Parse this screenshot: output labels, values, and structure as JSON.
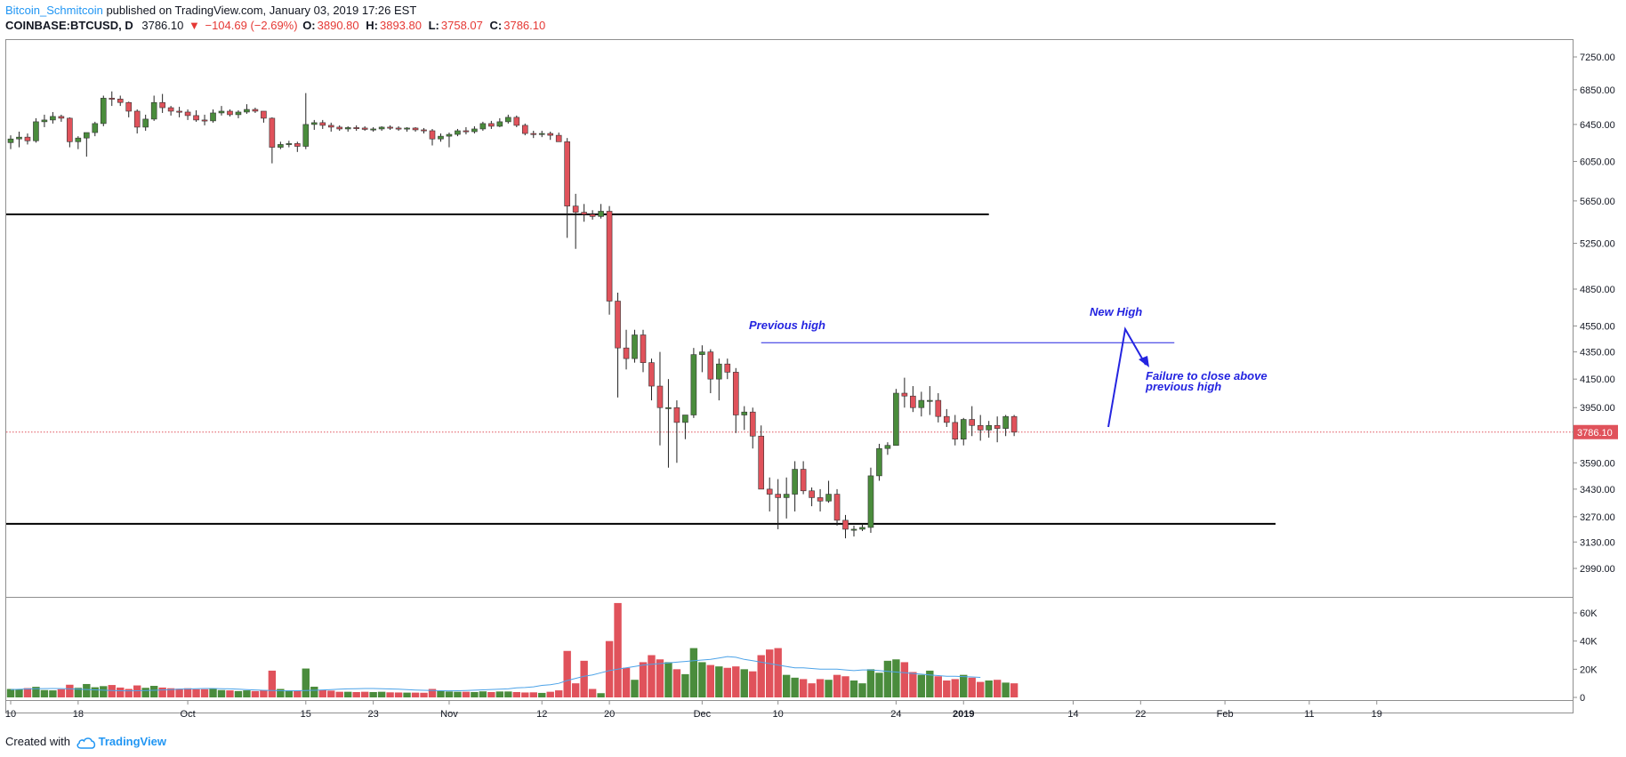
{
  "header": {
    "author": "Bitcoin_Schmitcoin",
    "published": "published on TradingView.com, January 03, 2019 17:26 EST"
  },
  "symbol": {
    "name": "COINBASE:BTCUSD, D",
    "last": "3786.10",
    "change": "−104.69 (−2.69%)",
    "o_label": "O:",
    "o": "3890.80",
    "h_label": "H:",
    "h": "3893.80",
    "l_label": "L:",
    "l": "3758.07",
    "c_label": "C:",
    "c": "3786.10"
  },
  "footer": {
    "created": "Created with",
    "brand": "TradingView"
  },
  "colors": {
    "up": "#4a8c3c",
    "down": "#e0525b",
    "annotation": "#2424e0",
    "ma": "#4da3e8",
    "level": "#000000"
  },
  "chart_data": {
    "type": "candlestick",
    "price_axis": {
      "ticks": [
        7250,
        6850,
        6450,
        6050,
        5650,
        5250,
        4850,
        4550,
        4350,
        4150,
        3950,
        3590,
        3430,
        3270,
        3130,
        2990
      ],
      "tick_labels": [
        "7250.00",
        "6850.00",
        "6450.00",
        "6050.00",
        "5650.00",
        "5250.00",
        "4850.00",
        "4550.00",
        "4350.00",
        "4150.00",
        "3950.00",
        "3590.00",
        "3430.00",
        "3270.00",
        "3130.00",
        "2990.00"
      ],
      "scale": "log",
      "last_price_label": "3786.10",
      "last_price": 3786.1
    },
    "volume_axis": {
      "ticks": [
        60000,
        40000,
        20000,
        0
      ],
      "tick_labels": [
        "60K",
        "40K",
        "20K",
        "0"
      ]
    },
    "time_axis": {
      "start_date": "2018-09-10",
      "ticks": [
        {
          "date": "2018-09-10",
          "label": "10",
          "bold": false
        },
        {
          "date": "2018-09-18",
          "label": "18",
          "bold": false
        },
        {
          "date": "2018-10-01",
          "label": "Oct",
          "bold": false
        },
        {
          "date": "2018-10-15",
          "label": "15",
          "bold": false
        },
        {
          "date": "2018-10-23",
          "label": "23",
          "bold": false
        },
        {
          "date": "2018-11-01",
          "label": "Nov",
          "bold": false
        },
        {
          "date": "2018-11-12",
          "label": "12",
          "bold": false
        },
        {
          "date": "2018-11-20",
          "label": "20",
          "bold": false
        },
        {
          "date": "2018-12-01",
          "label": "Dec",
          "bold": false
        },
        {
          "date": "2018-12-10",
          "label": "10",
          "bold": false
        },
        {
          "date": "2018-12-24",
          "label": "24",
          "bold": false
        },
        {
          "date": "2019-01-01",
          "label": "2019",
          "bold": true
        },
        {
          "date": "2019-01-14",
          "label": "14",
          "bold": false
        },
        {
          "date": "2019-01-22",
          "label": "22",
          "bold": false
        },
        {
          "date": "2019-02-01",
          "label": "Feb",
          "bold": false
        },
        {
          "date": "2019-02-11",
          "label": "11",
          "bold": false
        },
        {
          "date": "2019-02-19",
          "label": "19",
          "bold": false
        }
      ]
    },
    "candles": [
      [
        6250,
        6330,
        6180,
        6290,
        6000
      ],
      [
        6290,
        6370,
        6200,
        6310,
        5800
      ],
      [
        6310,
        6350,
        6230,
        6270,
        6600
      ],
      [
        6270,
        6520,
        6250,
        6480,
        7500
      ],
      [
        6480,
        6560,
        6420,
        6500,
        5200
      ],
      [
        6500,
        6590,
        6460,
        6540,
        5000
      ],
      [
        6540,
        6560,
        6480,
        6520,
        5800
      ],
      [
        6520,
        6530,
        6200,
        6260,
        9000
      ],
      [
        6260,
        6320,
        6180,
        6300,
        6800
      ],
      [
        6300,
        6340,
        6100,
        6360,
        9500
      ],
      [
        6360,
        6480,
        6320,
        6460,
        7200
      ],
      [
        6460,
        6780,
        6430,
        6750,
        8000
      ],
      [
        6750,
        6830,
        6660,
        6740,
        8800
      ],
      [
        6740,
        6780,
        6660,
        6700,
        7000
      ],
      [
        6700,
        6710,
        6530,
        6600,
        6000
      ],
      [
        6600,
        6620,
        6350,
        6420,
        8500
      ],
      [
        6420,
        6560,
        6380,
        6510,
        6800
      ],
      [
        6510,
        6780,
        6490,
        6700,
        8200
      ],
      [
        6700,
        6800,
        6580,
        6640,
        7000
      ],
      [
        6640,
        6660,
        6550,
        6600,
        6500
      ],
      [
        6600,
        6650,
        6530,
        6590,
        6200
      ],
      [
        6590,
        6620,
        6500,
        6550,
        6500
      ],
      [
        6550,
        6610,
        6480,
        6500,
        5800
      ],
      [
        6500,
        6560,
        6440,
        6490,
        5800
      ],
      [
        6490,
        6620,
        6470,
        6580,
        6000
      ],
      [
        6580,
        6660,
        6550,
        6600,
        5200
      ],
      [
        6600,
        6620,
        6540,
        6560,
        5000
      ],
      [
        6560,
        6610,
        6520,
        6590,
        4500
      ],
      [
        6590,
        6680,
        6570,
        6620,
        5000
      ],
      [
        6620,
        6640,
        6580,
        6600,
        4500
      ],
      [
        6600,
        6600,
        6470,
        6520,
        5200
      ],
      [
        6520,
        6530,
        6030,
        6200,
        19000
      ],
      [
        6200,
        6260,
        6180,
        6230,
        6000
      ],
      [
        6230,
        6270,
        6200,
        6240,
        5000
      ],
      [
        6240,
        6260,
        6150,
        6210,
        4800
      ],
      [
        6210,
        6810,
        6180,
        6450,
        20500
      ],
      [
        6450,
        6500,
        6390,
        6470,
        7600
      ],
      [
        6470,
        6500,
        6400,
        6440,
        5200
      ],
      [
        6440,
        6470,
        6370,
        6420,
        4800
      ],
      [
        6420,
        6440,
        6380,
        6400,
        4000
      ],
      [
        6400,
        6430,
        6370,
        6415,
        4000
      ],
      [
        6415,
        6440,
        6380,
        6410,
        3800
      ],
      [
        6410,
        6430,
        6380,
        6395,
        4000
      ],
      [
        6395,
        6420,
        6370,
        6400,
        3800
      ],
      [
        6400,
        6430,
        6380,
        6420,
        4000
      ],
      [
        6420,
        6440,
        6390,
        6410,
        3600
      ],
      [
        6410,
        6430,
        6380,
        6400,
        3500
      ],
      [
        6400,
        6420,
        6370,
        6410,
        3400
      ],
      [
        6410,
        6420,
        6370,
        6390,
        3400
      ],
      [
        6390,
        6410,
        6350,
        6380,
        3300
      ],
      [
        6380,
        6400,
        6220,
        6290,
        6000
      ],
      [
        6290,
        6350,
        6260,
        6320,
        4500
      ],
      [
        6320,
        6360,
        6200,
        6340,
        4200
      ],
      [
        6340,
        6400,
        6320,
        6380,
        4000
      ],
      [
        6380,
        6420,
        6340,
        6370,
        4000
      ],
      [
        6370,
        6430,
        6350,
        6400,
        3800
      ],
      [
        6400,
        6480,
        6380,
        6460,
        4300
      ],
      [
        6460,
        6490,
        6400,
        6430,
        3800
      ],
      [
        6430,
        6520,
        6420,
        6480,
        4200
      ],
      [
        6480,
        6560,
        6460,
        6530,
        4200
      ],
      [
        6530,
        6550,
        6420,
        6440,
        3800
      ],
      [
        6440,
        6460,
        6330,
        6350,
        3500
      ],
      [
        6350,
        6380,
        6300,
        6340,
        3600
      ],
      [
        6340,
        6380,
        6310,
        6350,
        3200
      ],
      [
        6350,
        6370,
        6280,
        6330,
        4000
      ],
      [
        6330,
        6360,
        6260,
        6260,
        5000
      ],
      [
        6260,
        6300,
        5300,
        5600,
        33000
      ],
      [
        5600,
        5720,
        5200,
        5540,
        10000
      ],
      [
        5540,
        5620,
        5450,
        5520,
        26000
      ],
      [
        5520,
        5560,
        5470,
        5500,
        6000
      ],
      [
        5500,
        5620,
        5480,
        5550,
        3000
      ],
      [
        5550,
        5600,
        4640,
        4750,
        40000
      ],
      [
        4750,
        4820,
        4020,
        4380,
        67000
      ],
      [
        4380,
        4520,
        4220,
        4300,
        21000
      ],
      [
        4300,
        4520,
        4270,
        4480,
        12500
      ],
      [
        4480,
        4520,
        4200,
        4270,
        25000
      ],
      [
        4270,
        4300,
        4000,
        4100,
        30000
      ],
      [
        4100,
        4350,
        3700,
        3950,
        27000
      ],
      [
        3950,
        4150,
        3560,
        3950,
        25000
      ],
      [
        3950,
        4000,
        3590,
        3850,
        20000
      ],
      [
        3850,
        3880,
        3740,
        3900,
        16500
      ],
      [
        3900,
        4380,
        3880,
        4330,
        35000
      ],
      [
        4330,
        4400,
        4200,
        4350,
        25000
      ],
      [
        4350,
        4370,
        4050,
        4150,
        23000
      ],
      [
        4150,
        4300,
        4000,
        4260,
        22000
      ],
      [
        4260,
        4300,
        4150,
        4200,
        21000
      ],
      [
        4200,
        4230,
        3780,
        3900,
        22000
      ],
      [
        3900,
        3960,
        3800,
        3920,
        20000
      ],
      [
        3920,
        3950,
        3680,
        3760,
        18500
      ],
      [
        3760,
        3830,
        3450,
        3430,
        30000
      ],
      [
        3430,
        3500,
        3300,
        3400,
        34000
      ],
      [
        3400,
        3490,
        3200,
        3380,
        35000
      ],
      [
        3380,
        3500,
        3260,
        3400,
        16000
      ],
      [
        3400,
        3600,
        3300,
        3550,
        14000
      ],
      [
        3550,
        3600,
        3400,
        3420,
        13000
      ],
      [
        3420,
        3440,
        3330,
        3380,
        10000
      ],
      [
        3380,
        3430,
        3300,
        3360,
        13000
      ],
      [
        3360,
        3480,
        3350,
        3400,
        12500
      ],
      [
        3400,
        3430,
        3220,
        3250,
        16000
      ],
      [
        3250,
        3280,
        3150,
        3200,
        15000
      ],
      [
        3200,
        3220,
        3160,
        3200,
        12000
      ],
      [
        3200,
        3230,
        3190,
        3210,
        10000
      ],
      [
        3210,
        3560,
        3180,
        3510,
        20000
      ],
      [
        3510,
        3710,
        3480,
        3680,
        17500
      ],
      [
        3680,
        3720,
        3640,
        3700,
        26000
      ],
      [
        3700,
        4080,
        3700,
        4050,
        27000
      ],
      [
        4050,
        4160,
        3950,
        4030,
        25000
      ],
      [
        4030,
        4100,
        3920,
        3950,
        18000
      ],
      [
        3950,
        4060,
        3890,
        4000,
        16000
      ],
      [
        4000,
        4100,
        3900,
        4000,
        19000
      ],
      [
        4000,
        4050,
        3850,
        3890,
        15000
      ],
      [
        3890,
        3940,
        3820,
        3850,
        12000
      ],
      [
        3850,
        3900,
        3700,
        3740,
        13000
      ],
      [
        3740,
        3880,
        3700,
        3870,
        16000
      ],
      [
        3870,
        3960,
        3760,
        3830,
        14000
      ],
      [
        3830,
        3900,
        3730,
        3800,
        11000
      ],
      [
        3800,
        3860,
        3750,
        3830,
        12000
      ],
      [
        3830,
        3890,
        3720,
        3810,
        12500
      ],
      [
        3810,
        3900,
        3760,
        3890,
        10500
      ],
      [
        3890,
        3900,
        3760,
        3786,
        10000
      ]
    ],
    "ma_start_index": 60,
    "ma_values": [
      6800,
      7000,
      7500,
      8500,
      9000,
      10000,
      12000,
      13500,
      15000,
      16000,
      17500,
      19000,
      20000,
      21000,
      22000,
      23000,
      23500,
      24000,
      24500,
      25000,
      25500,
      26000,
      26500,
      27000,
      28000,
      29000,
      28500,
      27000,
      26000,
      25000,
      24000,
      23000,
      22000,
      21000,
      21000,
      20500,
      20000,
      20000,
      20000,
      19500,
      19000,
      19500,
      19500,
      19000,
      18500,
      18000,
      17500,
      17000,
      16500,
      16000,
      15500,
      15000,
      15000,
      14800,
      14500,
      14200
    ],
    "levels": [
      {
        "price": 5520,
        "from_index": 0,
        "to_index": 116,
        "color": "#000000",
        "width": 2
      },
      {
        "price": 3230,
        "from_index": 0,
        "to_index": 150,
        "color": "#000000",
        "width": 2
      },
      {
        "price": 4420,
        "from_index": 89,
        "to_index": 138,
        "color": "#2424e0",
        "width": 1
      }
    ],
    "annotations": [
      {
        "text": "Previous high"
      },
      {
        "text": "New High"
      },
      {
        "lines": [
          "Failure to close above",
          "previous high"
        ]
      }
    ]
  }
}
